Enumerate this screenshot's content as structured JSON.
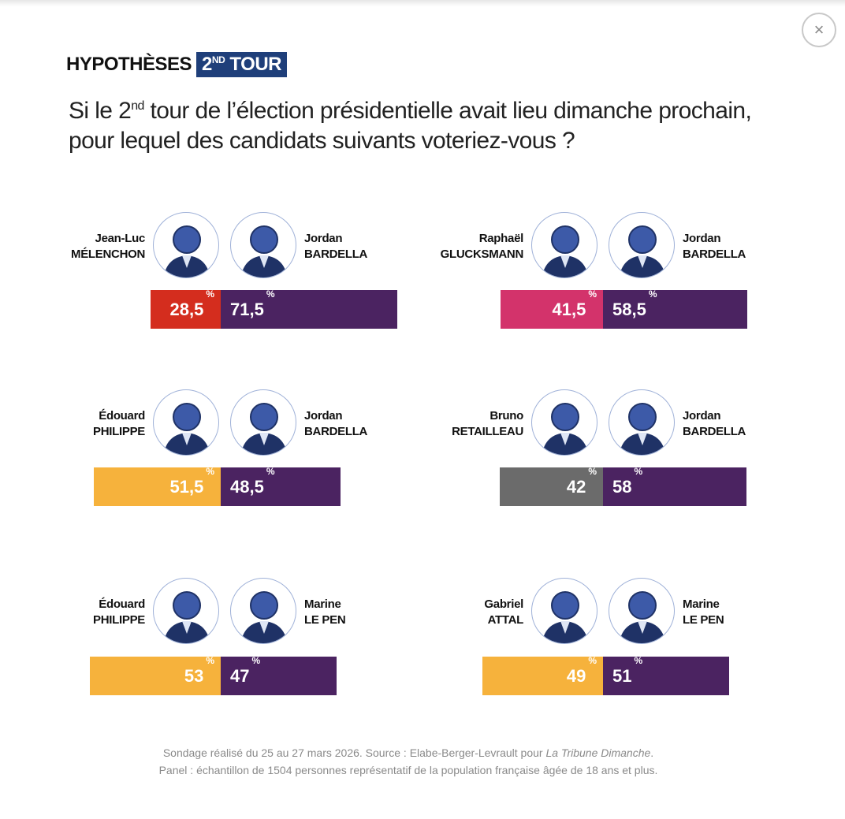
{
  "close_icon": "×",
  "header": {
    "kicker": "HYPOTHÈSES",
    "badge_main": "2",
    "badge_sup": "ND",
    "badge_tail": " TOUR",
    "badge_color": "#1f3f7a"
  },
  "question": {
    "pre": "Si le 2",
    "sup": "nd",
    "post": " tour de l’élection présidentielle avait lieu dimanche prochain, pour lequel des candidats suivants voteriez-vous ?"
  },
  "chart_data": {
    "type": "bar",
    "unit": "%",
    "matchups": [
      {
        "left": {
          "first": "Jean-Luc",
          "last": "MÉLENCHON",
          "value": 28.5,
          "label": "28,5",
          "color": "#d42d1e"
        },
        "right": {
          "first": "Jordan",
          "last": "BARDELLA",
          "value": 71.5,
          "label": "71,5",
          "color": "#4b2361"
        }
      },
      {
        "left": {
          "first": "Raphaël",
          "last": "GLUCKSMANN",
          "value": 41.5,
          "label": "41,5",
          "color": "#d3336b"
        },
        "right": {
          "first": "Jordan",
          "last": "BARDELLA",
          "value": 58.5,
          "label": "58,5",
          "color": "#4b2361"
        }
      },
      {
        "left": {
          "first": "Édouard",
          "last": "PHILIPPE",
          "value": 51.5,
          "label": "51,5",
          "color": "#f6b23c"
        },
        "right": {
          "first": "Jordan",
          "last": "BARDELLA",
          "value": 48.5,
          "label": "48,5",
          "color": "#4b2361"
        }
      },
      {
        "left": {
          "first": "Bruno",
          "last": "RETAILLEAU",
          "value": 42,
          "label": "42",
          "color": "#6b6b6b"
        },
        "right": {
          "first": "Jordan",
          "last": "BARDELLA",
          "value": 58,
          "label": "58",
          "color": "#4b2361"
        }
      },
      {
        "left": {
          "first": "Édouard",
          "last": "PHILIPPE",
          "value": 53,
          "label": "53",
          "color": "#f6b23c"
        },
        "right": {
          "first": "Marine",
          "last": "LE PEN",
          "value": 47,
          "label": "47",
          "color": "#4b2361"
        }
      },
      {
        "left": {
          "first": "Gabriel",
          "last": "ATTAL",
          "value": 49,
          "label": "49",
          "color": "#f6b23c"
        },
        "right": {
          "first": "Marine",
          "last": "LE PEN",
          "value": 51,
          "label": "51",
          "color": "#4b2361"
        }
      }
    ]
  },
  "footer": {
    "line1_pre": "Sondage réalisé du 25 au 27 mars 2026. Source : Elabe-Berger-Levrault pour ",
    "line1_italic": "La Tribune Dimanche",
    "line1_post": ".",
    "line2": "Panel : échantillon de 1504 personnes représentatif de la population française âgée de 18 ans et plus."
  }
}
